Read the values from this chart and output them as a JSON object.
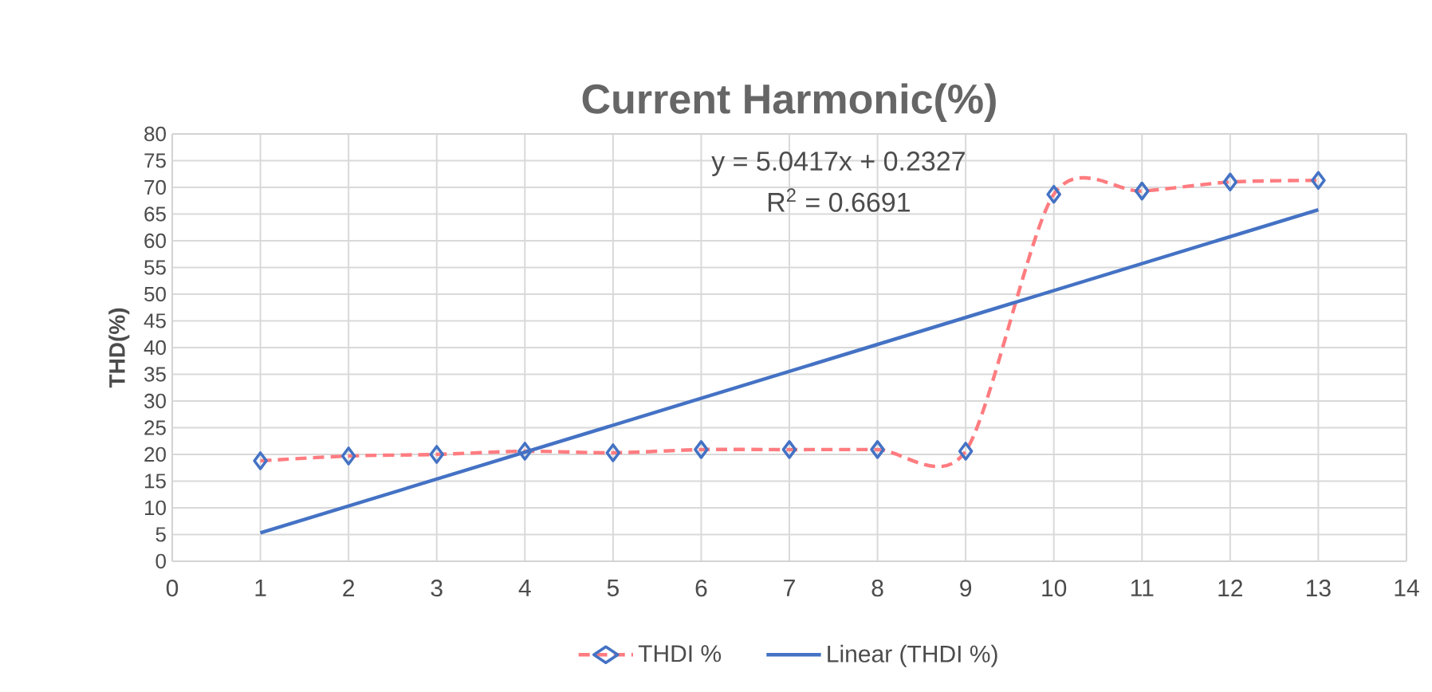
{
  "chart_data": {
    "type": "line",
    "title": "Current Harmonic(%)",
    "ylabel": "THD(%)",
    "x": [
      1,
      2,
      3,
      4,
      5,
      6,
      7,
      8,
      9,
      10,
      11,
      12,
      13
    ],
    "series": [
      {
        "name": "THDI %",
        "color": "#ff7c80",
        "colors": [
          "#4472c4",
          "#4472c4",
          "#4472c4",
          "#4472c4",
          "#4472c4",
          "#4472c4",
          "#4472c4",
          "#4472c4",
          "#4472c4",
          "#4472c4",
          "#4472c4",
          "#4472c4",
          "#4472c4"
        ],
        "line_style": "dashed",
        "marker": "diamond",
        "values": [
          18.8,
          19.7,
          20,
          20.6,
          20.3,
          20.9,
          20.9,
          20.9,
          20.6,
          68.7,
          69.3,
          71,
          71.3
        ]
      },
      {
        "name": "Linear (THDI %)",
        "color": "#4472c4",
        "line_style": "solid",
        "marker": "none",
        "x": [
          1,
          13
        ],
        "values": [
          5.3,
          65.8
        ]
      }
    ],
    "annotations": [
      "y = 5.0417x + 0.2327",
      "R$^{2}$ = 0.6691"
    ],
    "xlim": [
      0,
      14
    ],
    "xticks": [
      0,
      1,
      2,
      3,
      4,
      5,
      6,
      7,
      8,
      9,
      10,
      11,
      12,
      13,
      14
    ],
    "ylim": [
      0,
      80
    ],
    "yticks": [
      0,
      5,
      10,
      15,
      20,
      25,
      30,
      35,
      40,
      45,
      50,
      55,
      60,
      65,
      70,
      75,
      80
    ],
    "grid": true,
    "legend": "bottom"
  }
}
